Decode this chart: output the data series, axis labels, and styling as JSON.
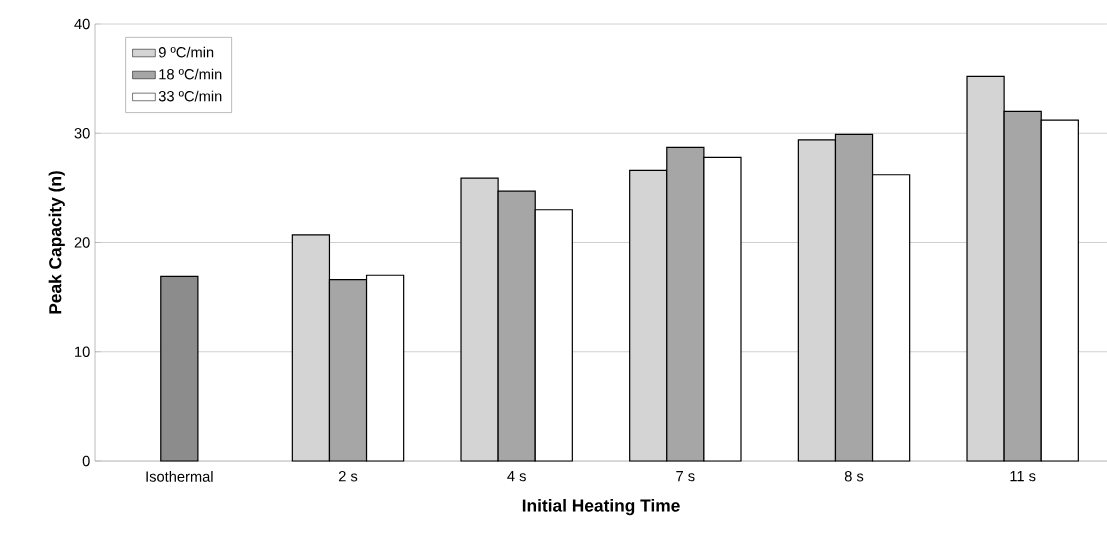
{
  "chart_data": {
    "type": "bar",
    "xlabel": "Initial Heating Time",
    "ylabel": "Peak Capacity (n)",
    "categories": [
      "Isothermal",
      "2 s",
      "4 s",
      "7 s",
      "8 s",
      "11 s"
    ],
    "series": [
      {
        "name": "9 ºC/min",
        "color": "#d4d4d4",
        "values": [
          null,
          20.7,
          25.9,
          26.6,
          29.4,
          35.2
        ]
      },
      {
        "name": "18 ºC/min",
        "color": "#a6a6a6",
        "colors": [
          "#8c8c8c",
          "#a6a6a6",
          "#a6a6a6",
          "#a6a6a6",
          "#a6a6a6",
          "#a6a6a6"
        ],
        "values": [
          16.9,
          16.6,
          24.7,
          28.7,
          29.9,
          32.0
        ]
      },
      {
        "name": "33 ºC/min",
        "color": "#ffffff",
        "values": [
          null,
          17.0,
          23.0,
          27.8,
          26.2,
          31.2
        ]
      }
    ],
    "ylim": [
      0,
      40
    ],
    "yticks": [
      0,
      10,
      20,
      30,
      40
    ],
    "grid": "y",
    "legend": "top left"
  }
}
